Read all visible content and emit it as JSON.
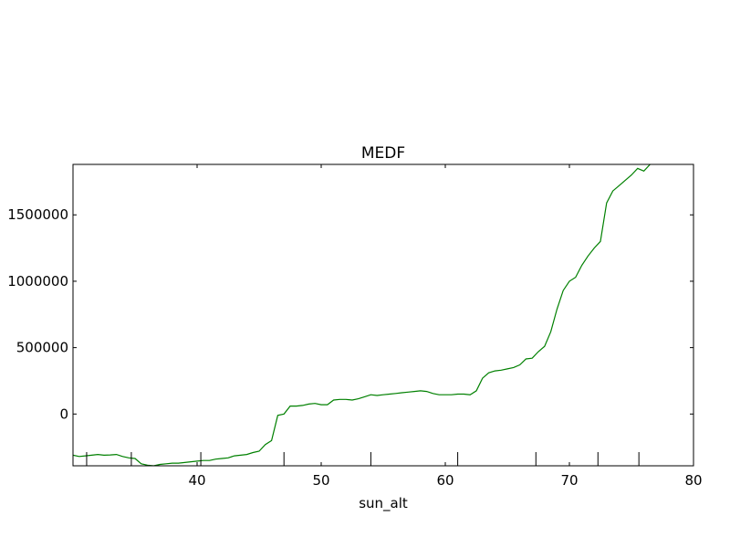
{
  "chart_data": {
    "type": "line",
    "title": "MEDF",
    "xlabel": "sun_alt",
    "ylabel": "",
    "xlim": [
      30,
      80
    ],
    "ylim": [
      -390000,
      1880000
    ],
    "xticks": [
      40,
      50,
      60,
      70,
      80
    ],
    "xtick_labels": [
      "40",
      "50",
      "60",
      "70",
      "80"
    ],
    "yticks": [
      0,
      500000,
      1000000,
      1500000
    ],
    "ytick_labels": [
      "0",
      "500000",
      "1000000",
      "1500000"
    ],
    "rug_x": [
      31.1,
      34.7,
      40.3,
      47.0,
      54.0,
      61.0,
      67.3,
      72.3,
      75.6
    ],
    "grid": false,
    "series": [
      {
        "color": "#008000",
        "x": [
          30.0,
          30.5,
          31.0,
          31.5,
          32.0,
          32.5,
          33.0,
          33.5,
          34.0,
          34.5,
          35.0,
          35.5,
          36.0,
          36.5,
          37.0,
          37.5,
          38.0,
          38.5,
          39.0,
          39.5,
          40.0,
          40.5,
          41.0,
          41.5,
          42.0,
          42.5,
          43.0,
          43.5,
          44.0,
          44.5,
          45.0,
          45.5,
          46.0,
          46.5,
          47.0,
          47.5,
          48.0,
          48.5,
          49.0,
          49.5,
          50.0,
          50.5,
          51.0,
          51.5,
          52.0,
          52.5,
          53.0,
          53.5,
          54.0,
          54.5,
          55.0,
          55.5,
          56.0,
          56.5,
          57.0,
          57.5,
          58.0,
          58.5,
          59.0,
          59.5,
          60.0,
          60.5,
          61.0,
          61.5,
          62.0,
          62.5,
          63.0,
          63.5,
          64.0,
          64.5,
          65.0,
          65.5,
          66.0,
          66.5,
          67.0,
          67.5,
          68.0,
          68.5,
          69.0,
          69.5,
          70.0,
          70.5,
          71.0,
          71.5,
          72.0,
          72.5,
          73.0,
          73.5,
          74.0,
          74.5,
          75.0,
          75.5,
          76.0,
          76.5
        ],
        "y": [
          -310000,
          -320000,
          -315000,
          -310000,
          -305000,
          -310000,
          -308000,
          -305000,
          -320000,
          -330000,
          -335000,
          -375000,
          -385000,
          -390000,
          -380000,
          -375000,
          -370000,
          -370000,
          -365000,
          -360000,
          -355000,
          -350000,
          -350000,
          -340000,
          -335000,
          -330000,
          -315000,
          -310000,
          -305000,
          -290000,
          -280000,
          -230000,
          -200000,
          -10000,
          0,
          60000,
          60000,
          65000,
          75000,
          80000,
          70000,
          70000,
          105000,
          110000,
          110000,
          105000,
          115000,
          130000,
          145000,
          140000,
          145000,
          150000,
          155000,
          160000,
          165000,
          170000,
          175000,
          170000,
          155000,
          145000,
          145000,
          145000,
          150000,
          150000,
          145000,
          175000,
          270000,
          310000,
          325000,
          330000,
          340000,
          350000,
          370000,
          415000,
          420000,
          470000,
          510000,
          620000,
          790000,
          930000,
          1000000,
          1030000,
          1120000,
          1190000,
          1250000,
          1300000,
          1590000,
          1680000,
          1720000,
          1760000,
          1800000,
          1850000,
          1830000,
          1880000
        ]
      }
    ]
  }
}
